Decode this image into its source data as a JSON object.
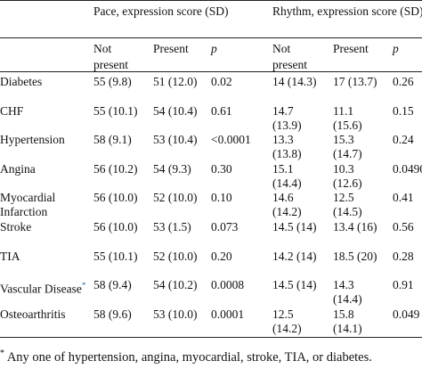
{
  "header": {
    "group_pace": "Pace, expression score (SD)",
    "group_rhythm": "Rhythm, expression score (SD)",
    "col_not_present": "Not present",
    "col_present": "Present",
    "col_p": "p"
  },
  "rows": [
    {
      "label": "Diabetes",
      "pace_np": "55 (9.8)",
      "pace_p": "51 (12.0)",
      "pace_pv": "0.02",
      "rhy_np": "14 (14.3)",
      "rhy_p": "17 (13.7)",
      "rhy_pv": "0.26"
    },
    {
      "label": "CHF",
      "pace_np": "55 (10.1)",
      "pace_p": "54 (10.4)",
      "pace_pv": "0.61",
      "rhy_np": "14.7 (13.9)",
      "rhy_p": "11.1 (15.6)",
      "rhy_pv": "0.15"
    },
    {
      "label": "Hypertension",
      "pace_np": "58 (9.1)",
      "pace_p": "53 (10.4)",
      "pace_pv": "<0.0001",
      "rhy_np": "13.3 (13.8)",
      "rhy_p": "15.3 (14.7)",
      "rhy_pv": "0.24"
    },
    {
      "label": "Angina",
      "pace_np": "56 (10.2)",
      "pace_p": "54 (9.3)",
      "pace_pv": "0.30",
      "rhy_np": "15.1 (14.4)",
      "rhy_p": "10.3 (12.6)",
      "rhy_pv": "0.0490"
    },
    {
      "label": "Myocardial Infarction",
      "pace_np": "56 (10.0)",
      "pace_p": "52 (10.0)",
      "pace_pv": "0.10",
      "rhy_np": "14.6 (14.2)",
      "rhy_p": "12.5 (14.5)",
      "rhy_pv": "0.41"
    },
    {
      "label": "Stroke",
      "pace_np": "56 (10.0)",
      "pace_p": "53 (1.5)",
      "pace_pv": "0.073",
      "rhy_np": "14.5 (14)",
      "rhy_p": "13.4 (16)",
      "rhy_pv": "0.56"
    },
    {
      "label": "TIA",
      "pace_np": "55 (10.1)",
      "pace_p": "52 (10.0)",
      "pace_pv": "0.20",
      "rhy_np": "14.2 (14)",
      "rhy_p": "18.5 (20)",
      "rhy_pv": "0.28"
    },
    {
      "label": "Vascular Disease",
      "label_mark": "*",
      "pace_np": "58 (9.4)",
      "pace_p": "54 (10.2)",
      "pace_pv": "0.0008",
      "rhy_np": "14.5 (14)",
      "rhy_p": "14.3 (14.4)",
      "rhy_pv": "0.91"
    },
    {
      "label": "Osteoarthritis",
      "pace_np": "58 (9.6)",
      "pace_p": "53 (10.0)",
      "pace_pv": "0.0001",
      "rhy_np": "12.5 (14.2)",
      "rhy_p": "15.8 (14.1)",
      "rhy_pv": "0.049"
    }
  ],
  "footnote": {
    "mark": "*",
    "text": "Any one of hypertension, angina, myocardial, stroke, TIA, or diabetes."
  }
}
